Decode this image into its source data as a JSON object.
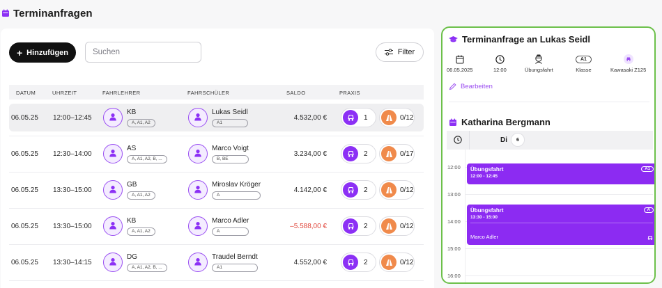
{
  "page": {
    "title": "Terminanfragen"
  },
  "toolbar": {
    "add_label": "Hinzufügen",
    "search_placeholder": "Suchen",
    "filter_label": "Filter"
  },
  "table": {
    "headers": [
      "DATUM",
      "UHRZEIT",
      "FAHRLEHRER",
      "FAHRSCHÜLER",
      "SALDO",
      "PRAXIS"
    ],
    "rows": [
      {
        "date": "06.05.25",
        "time": "12:00–12:45",
        "teacher": "KB",
        "teacher_classes": "A, A1, A2",
        "student": "Lukas Seidl",
        "student_classes": "A1",
        "saldo": "4.532,00 €",
        "lessons": "1",
        "progress": "0/12"
      },
      {
        "date": "06.05.25",
        "time": "12:30–14:00",
        "teacher": "AS",
        "teacher_classes": "A, A1, A2, B, ...",
        "student": "Marco Voigt",
        "student_classes": "B, BE",
        "saldo": "3.234,00 €",
        "lessons": "2",
        "progress": "0/17"
      },
      {
        "date": "06.05.25",
        "time": "13:30–15:00",
        "teacher": "GB",
        "teacher_classes": "A, A1, A2",
        "student": "Miroslav Kröger",
        "student_classes": "A",
        "saldo": "4.142,00 €",
        "lessons": "2",
        "progress": "0/12"
      },
      {
        "date": "06.05.25",
        "time": "13:30–15:00",
        "teacher": "KB",
        "teacher_classes": "A, A1, A2",
        "student": "Marco Adler",
        "student_classes": "A",
        "saldo": "–5.588,00 €",
        "lessons": "2",
        "progress": "0/12"
      },
      {
        "date": "06.05.25",
        "time": "13:30–14:15",
        "teacher": "DG",
        "teacher_classes": "A, A1, A2, B, ...",
        "student": "Traudel Berndt",
        "student_classes": "A1",
        "saldo": "4.552,00 €",
        "lessons": "2",
        "progress": "0/12"
      }
    ]
  },
  "detail": {
    "title": "Terminanfrage an Lukas Seidl",
    "date": "06.05.2025",
    "time": "12:00",
    "type": "Übungsfahrt",
    "klasse_badge": "A1",
    "klasse_label": "Klasse",
    "vehicle": "Kawasaki Z125",
    "edit_label": "Bearbeiten"
  },
  "calendar": {
    "teacher_name": "Katharina Bergmann",
    "day": "Di",
    "day_num": "6",
    "times": [
      "12:00",
      "13:00",
      "14:00",
      "15:00",
      "16:00"
    ],
    "events": [
      {
        "title": "Übungsfahrt",
        "time": "12:00 - 12:45",
        "badge": "A1",
        "student": ""
      },
      {
        "title": "Übungsfahrt",
        "time": "13:30 - 15:00",
        "badge": "A",
        "student": "Marco Adler"
      }
    ]
  },
  "colors": {
    "accent": "#8c30f5",
    "highlight_border": "#6cc04a",
    "negative": "#e0473c",
    "progress": "#f08a4b"
  }
}
